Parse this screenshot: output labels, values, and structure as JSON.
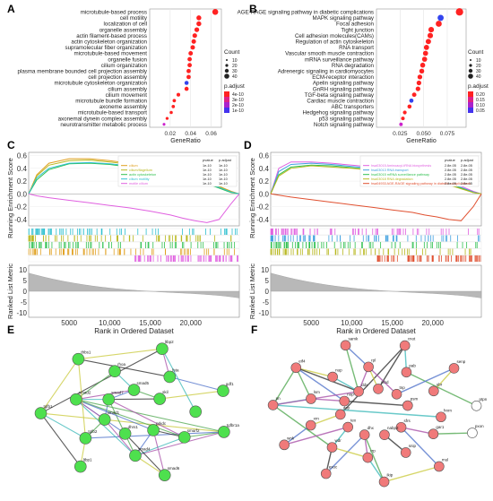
{
  "panel_letters": {
    "a": "A",
    "b": "B",
    "c": "C",
    "d": "D",
    "e": "E",
    "f": "F"
  },
  "colors": {
    "dot_red": "#ff2222",
    "dot_blue": "#3344ee",
    "dot_purple": "#cc22cc",
    "green_node": "#4ee04e",
    "red_node": "#f07a7a"
  },
  "chart_data": [
    {
      "panel": "A",
      "type": "scatter",
      "xlabel": "GeneRatio",
      "x_ticks": [
        "0.02",
        "0.04",
        "0.06"
      ],
      "xlim": [
        0.0,
        0.07
      ],
      "categories": [
        "microtubule-based process",
        "cell motility",
        "localization of cell",
        "organelle assembly",
        "actin filament-based process",
        "actin cytoskeleton organization",
        "supramolecular fiber organization",
        "microtubule-based movement",
        "organelle fusion",
        "cilium organization",
        "plasma membrane bounded cell projection assembly",
        "cell projection assembly",
        "microtubule cytoskeleton organization",
        "cilium assembly",
        "cilium movement",
        "microtubule bundle formation",
        "axoneme assembly",
        "microtubule-based transport",
        "axonemal dynein complex assembly",
        "neurotransmitter metabolic process"
      ],
      "values": [
        0.064,
        0.048,
        0.048,
        0.046,
        0.044,
        0.043,
        0.042,
        0.04,
        0.039,
        0.039,
        0.038,
        0.038,
        0.036,
        0.036,
        0.028,
        0.024,
        0.023,
        0.021,
        0.017,
        0.014
      ],
      "legend": {
        "size_title": "Count",
        "size_labels": [
          "10",
          "20",
          "30",
          "40"
        ],
        "color_title": "p.adjust",
        "color_labels": [
          "4e-10",
          "3e-10",
          "2e-10",
          "1e-10"
        ]
      }
    },
    {
      "panel": "B",
      "type": "scatter",
      "xlabel": "GeneRatio",
      "x_ticks": [
        "0.025",
        "0.050",
        "0.075"
      ],
      "xlim": [
        0.0,
        0.095
      ],
      "categories": [
        "AGE-RAGE signaling pathway in diabetic complications",
        "MAPK signaling pathway",
        "Focal adhesion",
        "Tight junction",
        "Cell adhesion molecules(CAMs)",
        "Regulation of actin cytoskeleton",
        "RNA transport",
        "Vascular smooth muscle contraction",
        "mRNA surveillance pathway",
        "RNA degradation",
        "Adrenergic signaling in cardiomyocytes",
        "ECM-receptor interaction",
        "Apelin signaling pathway",
        "GnRH signaling pathway",
        "TGF-beta signaling pathway",
        "Cardiac muscle contraction",
        "ABC transporters",
        "Hedgehog signaling pathway",
        "p53 signaling pathway",
        "Notch signaling pathway"
      ],
      "values": [
        0.088,
        0.068,
        0.066,
        0.058,
        0.057,
        0.055,
        0.053,
        0.052,
        0.051,
        0.049,
        0.048,
        0.046,
        0.045,
        0.044,
        0.04,
        0.037,
        0.035,
        0.03,
        0.028,
        0.026
      ],
      "legend": {
        "size_title": "Count",
        "size_labels": [
          "10",
          "20",
          "30",
          "40"
        ],
        "color_title": "p.adjust",
        "color_labels": [
          "0.20",
          "0.15",
          "0.10",
          "0.05"
        ]
      }
    },
    {
      "panel": "C",
      "type": "line",
      "ylabel_top": "Running Enrichment Score",
      "ylabel_bottom": "Ranked List Metric",
      "xlabel": "Rank in Ordered Dataset",
      "x_ticks": [
        "5000",
        "10,000",
        "15,000",
        "20,000"
      ],
      "y_ticks_top": [
        "0.6",
        "0.4",
        "0.2",
        "0.0",
        "-0.2",
        "-0.4"
      ],
      "y_ticks_bottom": [
        "10",
        "5",
        "0",
        "-5",
        "-10"
      ],
      "xlim": [
        0,
        26000
      ],
      "ylim_top": [
        -0.5,
        0.65
      ],
      "legend_header": [
        "pvalue",
        "p.adjust"
      ],
      "series": [
        {
          "name": "cilium",
          "color": "#e0a020",
          "pvalue": "1e-10",
          "padj": "1e-10"
        },
        {
          "name": "cilium/flagellum",
          "color": "#b8b820",
          "pvalue": "1e-10",
          "padj": "1e-10"
        },
        {
          "name": "actin cytoskeleton",
          "color": "#30c050",
          "pvalue": "1e-10",
          "padj": "1e-10"
        },
        {
          "name": "cilium motility",
          "color": "#30c0d0",
          "pvalue": "1e-10",
          "padj": "1e-10"
        },
        {
          "name": "motile cilium",
          "color": "#e060e0",
          "pvalue": "1e-10",
          "padj": "1e-10"
        }
      ],
      "x": [
        0,
        1000,
        2500,
        5000,
        7500,
        10000,
        12500,
        15000,
        17500,
        19000,
        20500,
        22000,
        23500,
        25000,
        26000
      ],
      "curves": [
        [
          0,
          0.3,
          0.48,
          0.55,
          0.55,
          0.52,
          0.48,
          0.44,
          0.38,
          0.33,
          0.27,
          0.2,
          0.12,
          0.04,
          0.0
        ],
        [
          0,
          0.28,
          0.45,
          0.52,
          0.53,
          0.5,
          0.46,
          0.42,
          0.36,
          0.31,
          0.26,
          0.19,
          0.11,
          0.03,
          0.0
        ],
        [
          0,
          0.22,
          0.38,
          0.47,
          0.48,
          0.46,
          0.42,
          0.38,
          0.33,
          0.28,
          0.23,
          0.16,
          0.09,
          0.02,
          0.0
        ],
        [
          0,
          0.25,
          0.4,
          0.48,
          0.49,
          0.47,
          0.44,
          0.4,
          0.35,
          0.3,
          0.25,
          0.17,
          0.1,
          0.03,
          0.0
        ],
        [
          0,
          -0.03,
          -0.06,
          -0.1,
          -0.14,
          -0.18,
          -0.22,
          -0.27,
          -0.33,
          -0.38,
          -0.42,
          -0.45,
          -0.4,
          -0.15,
          0.0
        ]
      ]
    },
    {
      "panel": "D",
      "type": "line",
      "ylabel_top": "Running Enrichment Score",
      "ylabel_bottom": "Ranked List Metric",
      "xlabel": "Rank in Ordered Dataset",
      "x_ticks": [
        "5000",
        "10,000",
        "15,000",
        "20,000"
      ],
      "y_ticks_top": [
        "0.6",
        "0.4",
        "0.2",
        "0.0",
        "-0.2",
        "-0.4"
      ],
      "y_ticks_bottom": [
        "10",
        "5",
        "0",
        "-5",
        "-10"
      ],
      "xlim": [
        0,
        26000
      ],
      "ylim_top": [
        -0.5,
        0.65
      ],
      "legend_header": [
        "pvalue",
        "p.adjust"
      ],
      "series": [
        {
          "name": "hsa03015 Aminoacyl-tRNA biosynthesis",
          "color": "#e060e0",
          "pvalue": "2.8e-05",
          "padj": "2.8e-05"
        },
        {
          "name": "hsa03013 RNA transport",
          "color": "#40a0e0",
          "pvalue": "2.8e-05",
          "padj": "2.8e-05"
        },
        {
          "name": "hsa03015 mRNA surveillance pathway",
          "color": "#30c050",
          "pvalue": "2.8e-05",
          "padj": "2.8e-05"
        },
        {
          "name": "hsa03018 RNA degradation",
          "color": "#b8b820",
          "pvalue": "2.8e-05",
          "padj": "2.8e-05"
        },
        {
          "name": "hsa04933 AGE-RAGE signaling pathway in diabetic complications",
          "color": "#e05030",
          "pvalue": "2.8e-05",
          "padj": "2.8e-05"
        }
      ],
      "x": [
        0,
        1000,
        2500,
        5000,
        7500,
        10000,
        12500,
        15000,
        17500,
        19000,
        20500,
        22000,
        23500,
        25000,
        26000
      ],
      "curves": [
        [
          0,
          0.4,
          0.5,
          0.5,
          0.48,
          0.45,
          0.42,
          0.38,
          0.34,
          0.3,
          0.26,
          0.2,
          0.12,
          0.04,
          0.0
        ],
        [
          0,
          0.35,
          0.46,
          0.48,
          0.46,
          0.43,
          0.4,
          0.36,
          0.32,
          0.28,
          0.23,
          0.17,
          0.1,
          0.03,
          0.0
        ],
        [
          0,
          0.3,
          0.42,
          0.45,
          0.44,
          0.41,
          0.38,
          0.34,
          0.3,
          0.26,
          0.21,
          0.15,
          0.09,
          0.02,
          0.0
        ],
        [
          0,
          0.28,
          0.4,
          0.44,
          0.42,
          0.4,
          0.37,
          0.33,
          0.29,
          0.25,
          0.2,
          0.14,
          0.08,
          0.02,
          0.0
        ],
        [
          0,
          -0.02,
          -0.05,
          -0.09,
          -0.13,
          -0.17,
          -0.21,
          -0.25,
          -0.29,
          -0.33,
          -0.36,
          -0.4,
          -0.42,
          -0.2,
          0.0
        ]
      ]
    }
  ],
  "network_e": {
    "nodes": [
      {
        "id": "e1",
        "label": "tgfbr1a"
      },
      {
        "id": "e2",
        "label": "smurf2"
      },
      {
        "id": "e3",
        "label": "prkdc"
      },
      {
        "id": "e4",
        "label": "smad6"
      },
      {
        "id": "e5",
        "label": "smad4"
      },
      {
        "id": "e6",
        "label": "dhrs1"
      },
      {
        "id": "e7",
        "label": "ltbp1"
      },
      {
        "id": "e8",
        "label": "tgfb2"
      },
      {
        "id": "e9",
        "label": "smad1"
      },
      {
        "id": "e10",
        "label": "tgfb1"
      },
      {
        "id": "e11",
        "label": "smad2"
      },
      {
        "id": "e12",
        "label": "smad7"
      },
      {
        "id": "e13",
        "label": "thbs1"
      },
      {
        "id": "e14",
        "label": "rhoa"
      },
      {
        "id": "e15",
        "label": "smad5"
      },
      {
        "id": "e16",
        "label": "ltbp2"
      },
      {
        "id": "e17",
        "label": "fsta"
      },
      {
        "id": "e18",
        "label": "skil"
      },
      {
        "id": "e19",
        "label": "gdf1"
      },
      {
        "id": "e20",
        "label": ""
      }
    ],
    "edges": [
      [
        "e1",
        "e2"
      ],
      [
        "e1",
        "e5"
      ],
      [
        "e1",
        "e8"
      ],
      [
        "e1",
        "e10"
      ],
      [
        "e2",
        "e3"
      ],
      [
        "e2",
        "e5"
      ],
      [
        "e2",
        "e11"
      ],
      [
        "e3",
        "e4"
      ],
      [
        "e3",
        "e5"
      ],
      [
        "e4",
        "e5"
      ],
      [
        "e4",
        "e6"
      ],
      [
        "e5",
        "e11"
      ],
      [
        "e5",
        "e12"
      ],
      [
        "e5",
        "e9"
      ],
      [
        "e6",
        "e11"
      ],
      [
        "e7",
        "e8"
      ],
      [
        "e7",
        "e10"
      ],
      [
        "e8",
        "e10"
      ],
      [
        "e8",
        "e9"
      ],
      [
        "e9",
        "e11"
      ],
      [
        "e9",
        "e12"
      ],
      [
        "e10",
        "e13"
      ],
      [
        "e10",
        "e16"
      ],
      [
        "e11",
        "e12"
      ],
      [
        "e11",
        "e14"
      ],
      [
        "e11",
        "e15"
      ],
      [
        "e12",
        "e15"
      ],
      [
        "e13",
        "e16"
      ],
      [
        "e13",
        "e17"
      ],
      [
        "e14",
        "e15"
      ],
      [
        "e15",
        "e18"
      ],
      [
        "e16",
        "e17"
      ],
      [
        "e17",
        "e19"
      ],
      [
        "e18",
        "e19"
      ],
      [
        "e12",
        "e18"
      ],
      [
        "e20",
        "e16"
      ],
      [
        "e1",
        "e11"
      ],
      [
        "e2",
        "e12"
      ],
      [
        "e3",
        "e11"
      ],
      [
        "e8",
        "e13"
      ]
    ]
  },
  "network_f": {
    "nodes": [
      {
        "id": "f1",
        "label": "pxon",
        "white": true
      },
      {
        "id": "f2",
        "label": "gar1"
      },
      {
        "id": "f3",
        "label": "sfrs"
      },
      {
        "id": "f4",
        "label": "mul"
      },
      {
        "id": "f5",
        "label": "snip"
      },
      {
        "id": "f6",
        "label": "nabp2"
      },
      {
        "id": "f7",
        "label": "ikip"
      },
      {
        "id": "f8",
        "label": "rrp"
      },
      {
        "id": "f9",
        "label": "dhx"
      },
      {
        "id": "f10",
        "label": "exoc"
      },
      {
        "id": "f11",
        "label": "wdr"
      },
      {
        "id": "f12",
        "label": "tex"
      },
      {
        "id": "f13",
        "label": "wnk"
      },
      {
        "id": "f14",
        "label": "xrn"
      },
      {
        "id": "f15",
        "label": "dcp"
      },
      {
        "id": "f16",
        "label": "pn"
      },
      {
        "id": "f17",
        "label": "lsm"
      },
      {
        "id": "f18",
        "label": "nop"
      },
      {
        "id": "f19",
        "label": "eif4"
      },
      {
        "id": "f20",
        "label": "nup"
      },
      {
        "id": "f21",
        "label": "ddx"
      },
      {
        "id": "f22",
        "label": "samk"
      },
      {
        "id": "f23",
        "label": "rpl"
      },
      {
        "id": "f24",
        "label": "ythd"
      },
      {
        "id": "f25",
        "label": "cnot"
      },
      {
        "id": "f26",
        "label": "pab"
      },
      {
        "id": "f27",
        "label": "tnp"
      },
      {
        "id": "f28",
        "label": "senp"
      },
      {
        "id": "f29",
        "label": "ubr"
      },
      {
        "id": "f30",
        "label": "psm"
      },
      {
        "id": "f31",
        "label": "ptpn",
        "white": true
      },
      {
        "id": "f32",
        "label": "hnrn"
      }
    ],
    "edges": [
      [
        "f1",
        "f2"
      ],
      [
        "f2",
        "f3"
      ],
      [
        "f3",
        "f4"
      ],
      [
        "f4",
        "f7"
      ],
      [
        "f5",
        "f6"
      ],
      [
        "f7",
        "f8"
      ],
      [
        "f7",
        "f9"
      ],
      [
        "f8",
        "f9"
      ],
      [
        "f9",
        "f10"
      ],
      [
        "f8",
        "f11"
      ],
      [
        "f10",
        "f11"
      ],
      [
        "f11",
        "f12"
      ],
      [
        "f11",
        "f16"
      ],
      [
        "f12",
        "f13"
      ],
      [
        "f13",
        "f14"
      ],
      [
        "f14",
        "f15"
      ],
      [
        "f15",
        "f25"
      ],
      [
        "f16",
        "f17"
      ],
      [
        "f16",
        "f19"
      ],
      [
        "f17",
        "f18"
      ],
      [
        "f18",
        "f19"
      ],
      [
        "f19",
        "f20"
      ],
      [
        "f19",
        "f21"
      ],
      [
        "f20",
        "f21"
      ],
      [
        "f21",
        "f22"
      ],
      [
        "f21",
        "f23"
      ],
      [
        "f22",
        "f23"
      ],
      [
        "f23",
        "f24"
      ],
      [
        "f24",
        "f25"
      ],
      [
        "f25",
        "f26"
      ],
      [
        "f26",
        "f31"
      ],
      [
        "f23",
        "f27"
      ],
      [
        "f27",
        "f28"
      ],
      [
        "f28",
        "f29"
      ],
      [
        "f18",
        "f30"
      ],
      [
        "f16",
        "f32"
      ],
      [
        "f17",
        "f19"
      ],
      [
        "f16",
        "f21"
      ]
    ]
  }
}
